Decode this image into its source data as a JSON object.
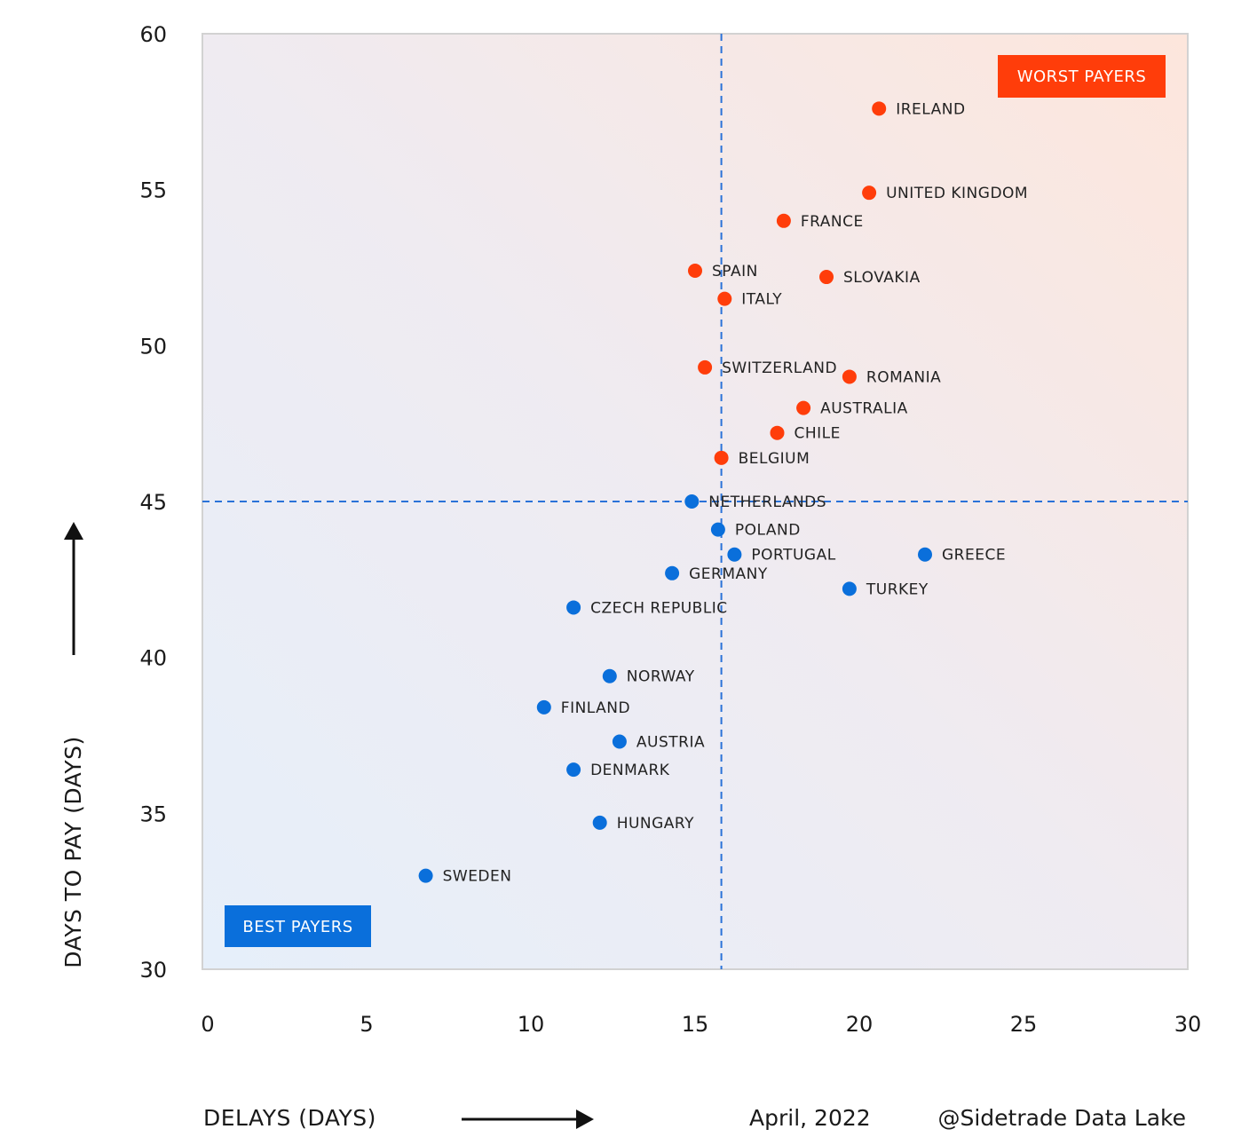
{
  "chart_data": {
    "type": "scatter",
    "xlabel": "DELAYS (DAYS)",
    "ylabel": "DAYS TO PAY (DAYS)",
    "xlim": [
      0,
      30
    ],
    "ylim": [
      30,
      60
    ],
    "xticks": [
      0,
      5,
      10,
      15,
      20,
      25,
      30
    ],
    "yticks": [
      30,
      35,
      40,
      45,
      50,
      55,
      60
    ],
    "reference_lines": {
      "x": 15.8,
      "y": 45
    },
    "quadrant_labels": {
      "worst": "WORST PAYERS",
      "best": "BEST PAYERS"
    },
    "colors": {
      "worst": "#ff3d0a",
      "best": "#0a6fdb"
    },
    "points": [
      {
        "label": "IRELAND",
        "x": 20.6,
        "y": 57.6,
        "group": "worst"
      },
      {
        "label": "UNITED KINGDOM",
        "x": 20.3,
        "y": 54.9,
        "group": "worst"
      },
      {
        "label": "FRANCE",
        "x": 17.7,
        "y": 54.0,
        "group": "worst"
      },
      {
        "label": "SPAIN",
        "x": 15.0,
        "y": 52.4,
        "group": "worst"
      },
      {
        "label": "SLOVAKIA",
        "x": 19.0,
        "y": 52.2,
        "group": "worst"
      },
      {
        "label": "ITALY",
        "x": 15.9,
        "y": 51.5,
        "group": "worst"
      },
      {
        "label": "SWITZERLAND",
        "x": 15.3,
        "y": 49.3,
        "group": "worst"
      },
      {
        "label": "ROMANIA",
        "x": 19.7,
        "y": 49.0,
        "group": "worst"
      },
      {
        "label": "AUSTRALIA",
        "x": 18.3,
        "y": 48.0,
        "group": "worst"
      },
      {
        "label": "CHILE",
        "x": 17.5,
        "y": 47.2,
        "group": "worst"
      },
      {
        "label": "BELGIUM",
        "x": 15.8,
        "y": 46.4,
        "group": "worst"
      },
      {
        "label": "NETHERLANDS",
        "x": 14.9,
        "y": 45.0,
        "group": "best"
      },
      {
        "label": "POLAND",
        "x": 15.7,
        "y": 44.1,
        "group": "best"
      },
      {
        "label": "PORTUGAL",
        "x": 16.2,
        "y": 43.3,
        "group": "best"
      },
      {
        "label": "GREECE",
        "x": 22.0,
        "y": 43.3,
        "group": "best"
      },
      {
        "label": "GERMANY",
        "x": 14.3,
        "y": 42.7,
        "group": "best"
      },
      {
        "label": "TURKEY",
        "x": 19.7,
        "y": 42.2,
        "group": "best"
      },
      {
        "label": "CZECH REPUBLIC",
        "x": 11.3,
        "y": 41.6,
        "group": "best"
      },
      {
        "label": "NORWAY",
        "x": 12.4,
        "y": 39.4,
        "group": "best"
      },
      {
        "label": "FINLAND",
        "x": 10.4,
        "y": 38.4,
        "group": "best"
      },
      {
        "label": "AUSTRIA",
        "x": 12.7,
        "y": 37.3,
        "group": "best"
      },
      {
        "label": "DENMARK",
        "x": 11.3,
        "y": 36.4,
        "group": "best"
      },
      {
        "label": "HUNGARY",
        "x": 12.1,
        "y": 34.7,
        "group": "best"
      },
      {
        "label": "SWEDEN",
        "x": 6.8,
        "y": 33.0,
        "group": "best"
      }
    ]
  },
  "footer": {
    "date": "April, 2022",
    "source": "@Sidetrade Data Lake"
  }
}
